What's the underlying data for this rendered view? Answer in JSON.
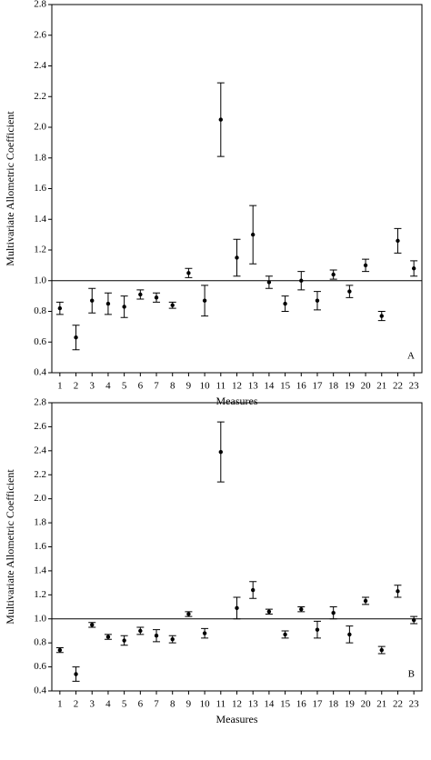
{
  "chart_data": [
    {
      "type": "errorbar",
      "x_label": "Measures",
      "y_label": "Multivariate Allometric Coefficient",
      "annotation": "A",
      "categories": [
        "1",
        "2",
        "3",
        "4",
        "5",
        "6",
        "7",
        "8",
        "9",
        "10",
        "11",
        "12",
        "13",
        "14",
        "15",
        "16",
        "17",
        "18",
        "19",
        "20",
        "21",
        "22",
        "23"
      ],
      "values": [
        0.82,
        0.63,
        0.87,
        0.85,
        0.83,
        0.91,
        0.89,
        0.84,
        1.05,
        0.87,
        2.05,
        1.15,
        1.3,
        0.99,
        0.85,
        1.0,
        0.87,
        1.04,
        0.93,
        1.1,
        0.77,
        1.26,
        1.08
      ],
      "errors": [
        0.04,
        0.08,
        0.08,
        0.07,
        0.07,
        0.03,
        0.03,
        0.02,
        0.03,
        0.1,
        0.24,
        0.12,
        0.19,
        0.04,
        0.05,
        0.06,
        0.06,
        0.03,
        0.04,
        0.04,
        0.03,
        0.08,
        0.05
      ],
      "color": "#000000",
      "hline": 1,
      "ylim": [
        0.4,
        2.8
      ],
      "yticks": [
        0.4,
        0.6,
        0.8,
        {
          "value": 1,
          "label": "1.0"
        },
        1.2,
        1.4,
        1.6,
        1.8,
        {
          "value": 2,
          "label": "2.0"
        },
        2.2,
        2.4,
        2.6,
        2.8
      ]
    },
    {
      "type": "errorbar",
      "x_label": "Measures",
      "y_label": "Multivariate Allometric Coefficient",
      "annotation": "B",
      "categories": [
        "1",
        "2",
        "3",
        "4",
        "5",
        "6",
        "7",
        "8",
        "9",
        "10",
        "11",
        "12",
        "13",
        "14",
        "15",
        "16",
        "17",
        "18",
        "19",
        "20",
        "21",
        "22",
        "23"
      ],
      "values": [
        0.74,
        0.54,
        0.95,
        0.85,
        0.82,
        0.9,
        0.86,
        0.83,
        1.04,
        0.88,
        2.39,
        1.09,
        1.24,
        1.06,
        0.87,
        1.08,
        0.91,
        1.05,
        0.87,
        1.15,
        0.74,
        1.23,
        0.99
      ],
      "errors": [
        0.02,
        0.06,
        0.02,
        0.02,
        0.04,
        0.03,
        0.05,
        0.03,
        0.02,
        0.04,
        0.25,
        0.09,
        0.07,
        0.02,
        0.03,
        0.02,
        0.07,
        0.05,
        0.07,
        0.03,
        0.03,
        0.05,
        0.03
      ],
      "color": "#000000",
      "hline": 1,
      "ylim": [
        0.4,
        2.8
      ],
      "yticks": [
        0.4,
        0.6,
        0.8,
        {
          "value": 1,
          "label": "1.0"
        },
        1.2,
        1.4,
        1.6,
        1.8,
        {
          "value": 2,
          "label": "2.0"
        },
        2.2,
        2.4,
        2.6,
        2.8
      ]
    }
  ]
}
